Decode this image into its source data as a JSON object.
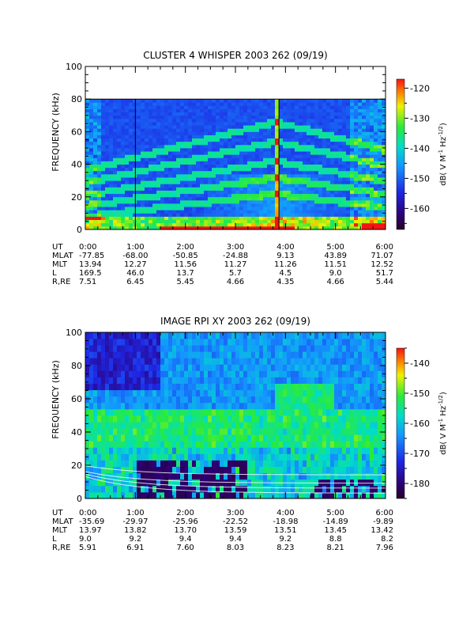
{
  "chart_data": [
    {
      "type": "heatmap",
      "title": "CLUSTER 4 WHISPER 2003 262 (09/19)",
      "ylabel": "FREQUENCY (kHz)",
      "ylim": [
        0,
        100
      ],
      "yticks": [
        0,
        20,
        40,
        60,
        80,
        100
      ],
      "xlim": [
        0,
        6
      ],
      "data_ymax": 80,
      "colorbar": {
        "label": "dB( V M",
        "label_sup1": "-1",
        "label_mid": " Hz",
        "label_sup2": "-1/2",
        "label_end": ")",
        "range": [
          -167,
          -117
        ],
        "ticks": [
          -120,
          -130,
          -140,
          -150,
          -160
        ]
      },
      "ephemeris": {
        "rows": [
          {
            "label": "UT",
            "values": [
              "0:00",
              "1:00",
              "2:00",
              "3:00",
              "4:00",
              "5:00",
              "6:00"
            ]
          },
          {
            "label": "MLAT",
            "values": [
              "-77.85",
              "-68.00",
              "-50.85",
              "-24.88",
              "9.13",
              "43.89",
              "71.07"
            ]
          },
          {
            "label": "MLT",
            "values": [
              "13.94",
              "12.27",
              "11.56",
              "11.27",
              "11.26",
              "11.51",
              "12.52"
            ]
          },
          {
            "label": "L",
            "values": [
              "169.5",
              "46.0",
              "13.7",
              "5.7",
              "4.5",
              "9.0",
              "51.7"
            ]
          },
          {
            "label": "R,RE",
            "values": [
              "7.51",
              "6.45",
              "5.45",
              "4.66",
              "4.35",
              "4.66",
              "5.44"
            ]
          }
        ]
      }
    },
    {
      "type": "heatmap",
      "title": "IMAGE RPI XY 2003 262 (09/19)",
      "ylabel": "FREQUENCY (kHz)",
      "ylim": [
        0,
        100
      ],
      "yticks": [
        0,
        20,
        40,
        60,
        80,
        100
      ],
      "xlim": [
        0,
        6
      ],
      "data_ymax": 100,
      "colorbar": {
        "label": "dB( V M",
        "label_sup1": "-1",
        "label_mid": " Hz",
        "label_sup2": "-1/2",
        "label_end": ")",
        "range": [
          -185,
          -135
        ],
        "ticks": [
          -140,
          -150,
          -160,
          -170,
          -180
        ]
      },
      "ephemeris": {
        "rows": [
          {
            "label": "UT",
            "values": [
              "0:00",
              "1:00",
              "2:00",
              "3:00",
              "4:00",
              "5:00",
              "6:00"
            ]
          },
          {
            "label": "MLAT",
            "values": [
              "-35.69",
              "-29.97",
              "-25.96",
              "-22.52",
              "-18.98",
              "-14.89",
              "-9.89"
            ]
          },
          {
            "label": "MLT",
            "values": [
              "13.97",
              "13.82",
              "13.70",
              "13.59",
              "13.51",
              "13.45",
              "13.42"
            ]
          },
          {
            "label": "L",
            "values": [
              "9.0",
              "9.2",
              "9.4",
              "9.4",
              "9.2",
              "8.8",
              "8.2"
            ]
          },
          {
            "label": "R,RE",
            "values": [
              "5.91",
              "6.91",
              "7.60",
              "8.03",
              "8.23",
              "8.21",
              "7.96"
            ]
          }
        ]
      }
    }
  ]
}
